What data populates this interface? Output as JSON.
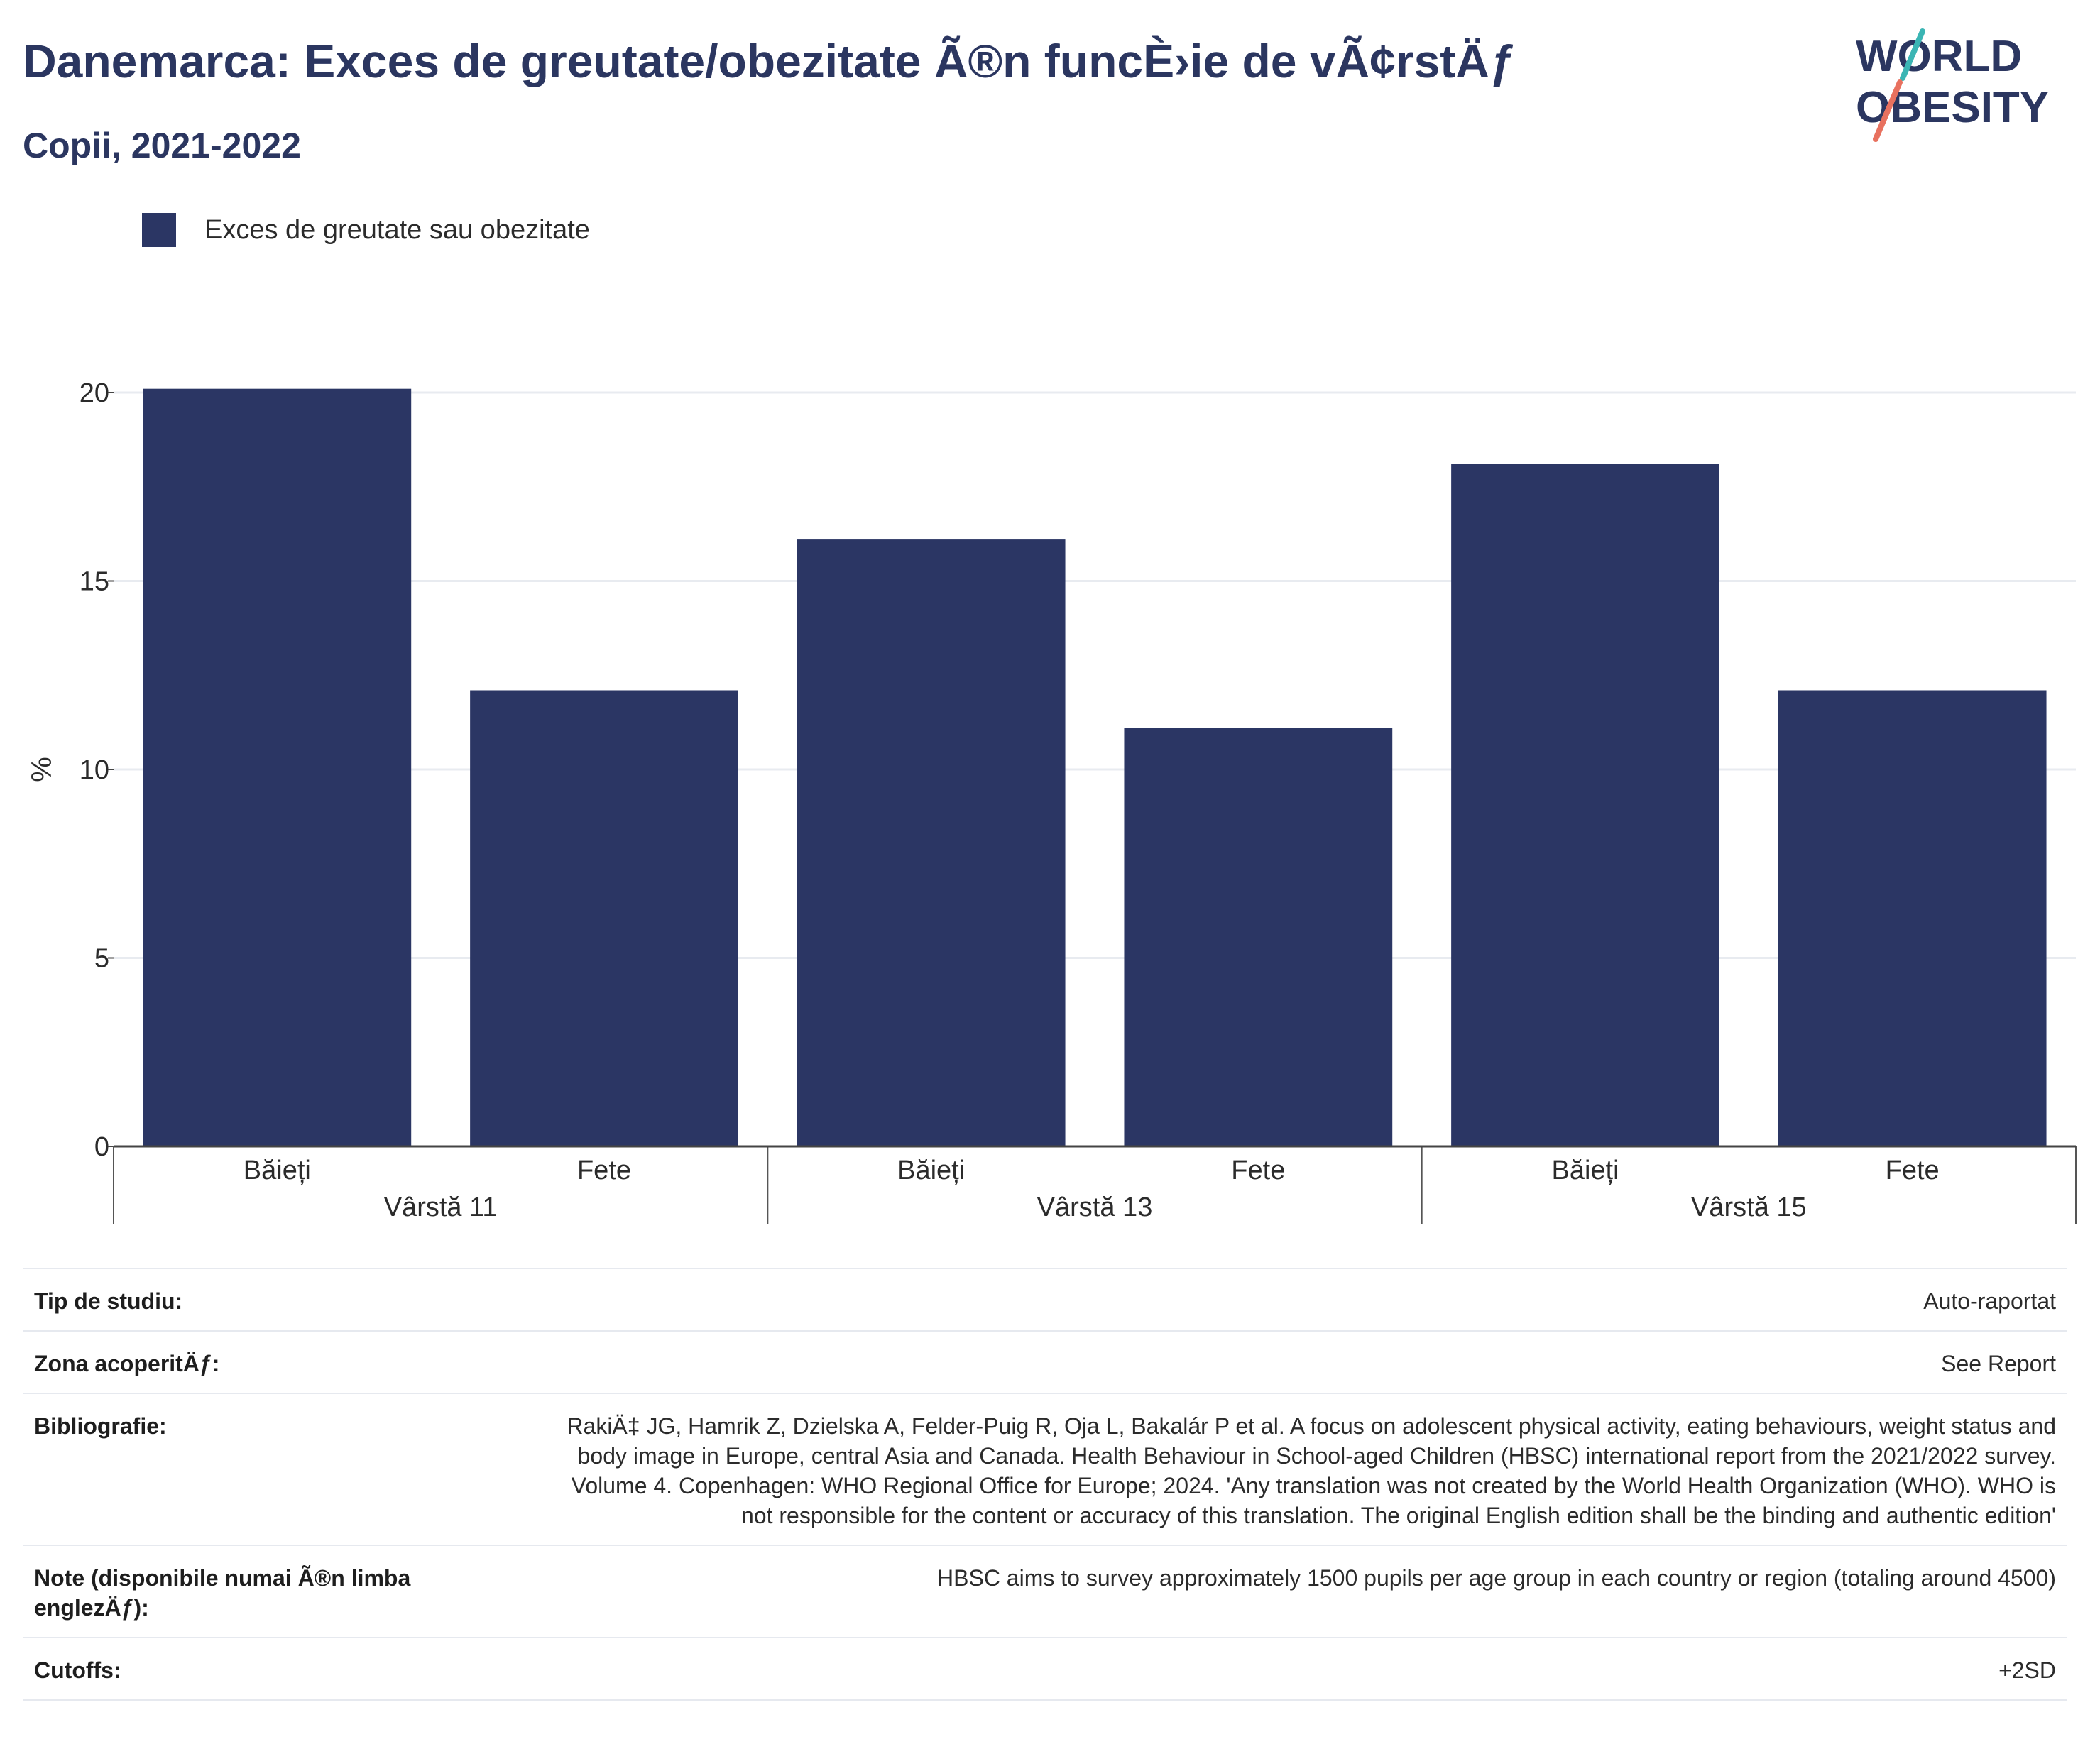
{
  "header": {
    "title": "Danemarca: Exces de greutate/obezitate Ã®n funcÈ›ie de vÃ¢rstÄƒ",
    "subtitle": "Copii, 2021-2022"
  },
  "logo": {
    "line1": "WORLD",
    "line2": "OBESITY"
  },
  "legend": {
    "label": "Exces de greutate sau obezitate",
    "color": "#2b3664"
  },
  "chart_data": {
    "type": "bar",
    "ylabel": "%",
    "ylim": [
      0,
      20
    ],
    "yticks": [
      0,
      5,
      10,
      15,
      20
    ],
    "grid": true,
    "legend_position": "top-left",
    "groups": [
      {
        "label": "Vârstă 11",
        "categories": [
          "Băieți",
          "Fete"
        ],
        "values": [
          20.1,
          12.1
        ]
      },
      {
        "label": "Vârstă 13",
        "categories": [
          "Băieți",
          "Fete"
        ],
        "values": [
          16.1,
          11.1
        ]
      },
      {
        "label": "Vârstă 15",
        "categories": [
          "Băieți",
          "Fete"
        ],
        "values": [
          18.1,
          12.1
        ]
      }
    ],
    "series": [
      {
        "name": "Exces de greutate sau obezitate",
        "color": "#2b3664"
      }
    ]
  },
  "meta": {
    "rows": [
      {
        "label": "Tip de studiu:",
        "value": "Auto-raportat"
      },
      {
        "label": "Zona acoperitÄƒ:",
        "value": "See Report"
      },
      {
        "label": "Bibliografie:",
        "value": "RakiÄ‡ JG, Hamrik Z, Dzielska A, Felder-Puig R, Oja L, Bakalár P et al. A focus on adolescent physical activity, eating behaviours, weight status and body image in Europe, central Asia and Canada. Health Behaviour in School-aged Children (HBSC) international report from the 2021/2022 survey. Volume 4. Copenhagen: WHO Regional Office for Europe; 2024. 'Any translation was not created by the World Health Organization (WHO). WHO is not responsible for the content or accuracy of this translation. The original English edition shall be the binding and authentic edition'"
      },
      {
        "label": "Note (disponibile numai Ã®n limba englezÄƒ):",
        "value": "HBSC aims to survey approximately 1500 pupils per age group in each country or region (totaling around 4500)"
      },
      {
        "label": "Cutoffs:",
        "value": "+2SD"
      }
    ]
  }
}
